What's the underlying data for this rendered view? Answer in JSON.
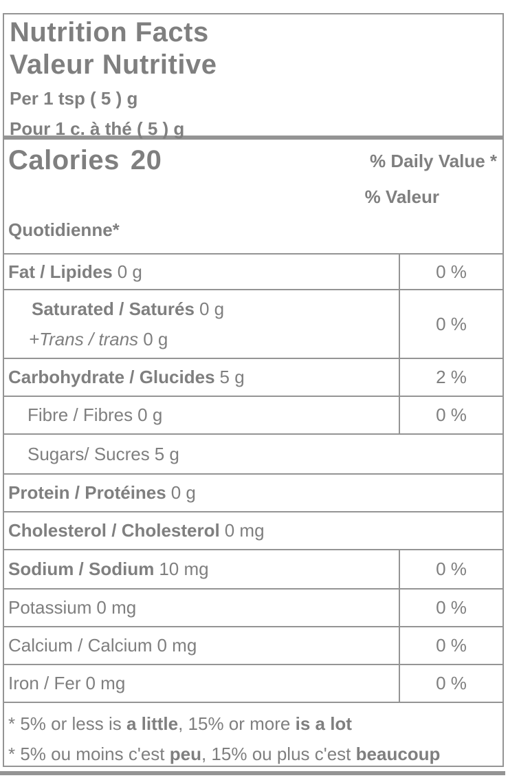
{
  "colors": {
    "text": "#7f7f7f",
    "line": "#949494",
    "background": "#ffffff"
  },
  "label": {
    "title_en": "Nutrition Facts",
    "title_fr": "Valeur Nutritive",
    "serving_en": "Per 1 tsp ( 5 ) g",
    "serving_fr": "Pour 1 c. à thé ( 5 ) g",
    "calories_label": "Calories",
    "calories_value": "20",
    "dv_header_en": "% Daily Value *",
    "dv_header_fr_line1": "% Valeur",
    "dv_header_fr_line2": "Quotidienne*",
    "rows": [
      {
        "name": "Fat / Lipides",
        "amount": "0 g",
        "dv": "0 %"
      },
      {
        "name": "Saturated / Saturés",
        "amount": "0 g",
        "sub_name": "+Trans / trans",
        "sub_amount": "0 g",
        "dv": "0 %"
      },
      {
        "name": "Carbohydrate / Glucides",
        "amount": "5 g",
        "dv": "2 %"
      },
      {
        "name": "Fibre / Fibres",
        "amount": "0 g",
        "dv": "0 %"
      },
      {
        "name": "Sugars/ Sucres",
        "amount": "5 g"
      },
      {
        "name": "Protein / Protéines",
        "amount": "0 g"
      },
      {
        "name": "Cholesterol / Cholesterol",
        "amount": "0 mg"
      },
      {
        "name": "Sodium / Sodium",
        "amount": "10 mg",
        "dv": "0 %"
      },
      {
        "name": "Potassium",
        "amount": "0 mg",
        "dv": "0 %"
      },
      {
        "name": "Calcium / Calcium",
        "amount": "0 mg",
        "dv": "0 %"
      },
      {
        "name": "Iron / Fer",
        "amount": "0 mg",
        "dv": "0 %"
      }
    ],
    "footnote_en": {
      "t1": "* 5% or less is ",
      "b1": "a little",
      "t2": ", 15% or more ",
      "b2": "is a lot"
    },
    "footnote_fr": {
      "t1": "* 5% ou moins c'est ",
      "b1": "peu",
      "t2": ", 15% ou plus c'est ",
      "b2": "beaucoup"
    }
  }
}
